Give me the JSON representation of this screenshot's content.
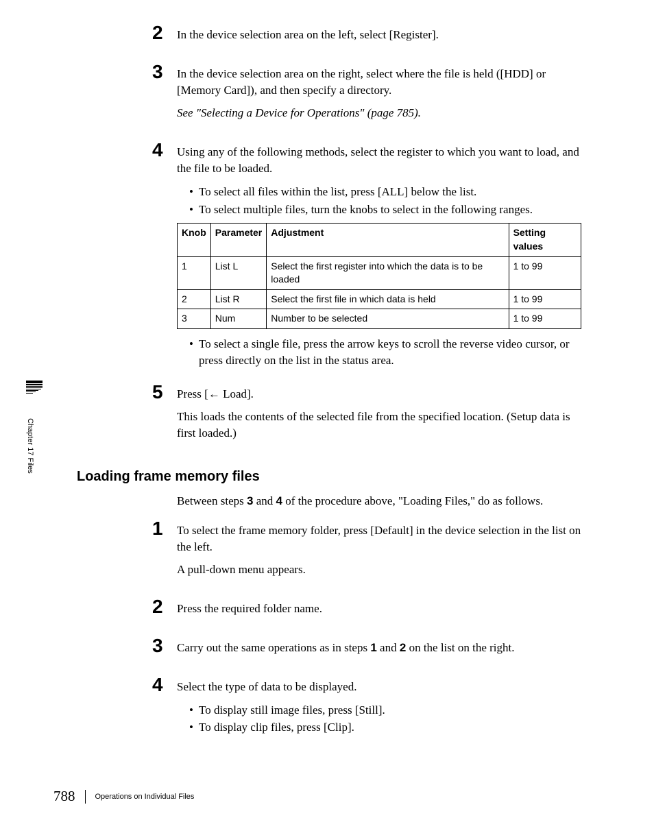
{
  "steps_a": {
    "s2": {
      "num": "2",
      "p1": "In the device selection area on the left, select [Register]."
    },
    "s3": {
      "num": "3",
      "p1": "In the device selection area on the right, select where the file is held ([HDD] or [Memory Card]), and then specify a directory.",
      "p2": "See \"Selecting a Device for Operations\" (page 785)."
    },
    "s4": {
      "num": "4",
      "p1": "Using any of the following methods, select the register to which you want to load, and the file to be loaded.",
      "b1": "To select all files within the list, press [ALL] below the list.",
      "b2": "To select multiple files, turn the knobs to select in the following ranges.",
      "b3": "To select a single file, press the arrow keys to scroll the reverse video cursor, or press directly on the list in the status area."
    },
    "s5": {
      "num": "5",
      "p1_pre": "Press [",
      "p1_post": " Load].",
      "p2": "This loads the contents of the selected file from the specified location. (Setup data is first loaded.)"
    }
  },
  "table": {
    "headers": {
      "c1": "Knob",
      "c2": "Parameter",
      "c3": "Adjustment",
      "c4": "Setting values"
    },
    "r1": {
      "c1": "1",
      "c2": "List L",
      "c3": "Select the first register into which the data is to be loaded",
      "c4": "1 to 99"
    },
    "r2": {
      "c1": "2",
      "c2": "List R",
      "c3": "Select the first file in which data is held",
      "c4": "1 to 99"
    },
    "r3": {
      "c1": "3",
      "c2": "Num",
      "c3": "Number to be selected",
      "c4": "1 to 99"
    }
  },
  "section_heading": "Loading frame memory files",
  "intro": {
    "pre": "Between steps ",
    "b1": "3",
    "mid1": " and ",
    "b2": "4",
    "post": " of the procedure above, \"Loading Files,\" do as follows."
  },
  "steps_b": {
    "s1": {
      "num": "1",
      "p1": "To select the frame memory folder, press [Default] in the device selection in the list on the left.",
      "p2": "A pull-down menu appears."
    },
    "s2": {
      "num": "2",
      "p1": "Press the required folder name."
    },
    "s3": {
      "num": "3",
      "pre": "Carry out the same operations as in steps ",
      "b1": "1",
      "mid1": " and ",
      "b2": "2",
      "post": " on the list on the right."
    },
    "s4": {
      "num": "4",
      "p1": "Select the type of data to be displayed.",
      "bl1": "To display still image files, press [Still].",
      "bl2": "To display clip files, press [Clip]."
    }
  },
  "sidebar_text": "Chapter 17  Files",
  "footer": {
    "page": "788",
    "title": "Operations on Individual Files"
  }
}
